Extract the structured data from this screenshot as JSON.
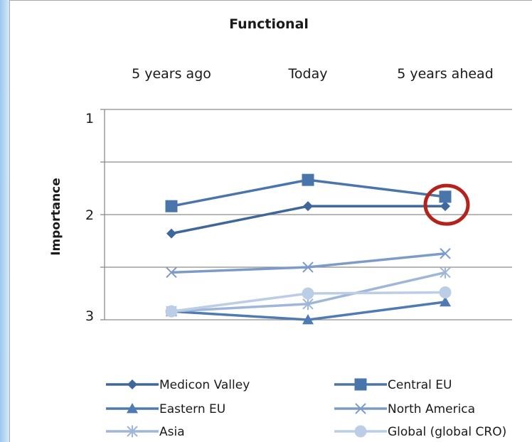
{
  "chart_data": {
    "type": "line",
    "title": "Functional",
    "categories": [
      "5 years ago",
      "Today",
      "5 years ahead"
    ],
    "ylabel": "Importance",
    "ylim": [
      1,
      3
    ],
    "y_inverted": true,
    "yticks": [
      "1",
      "2",
      "3"
    ],
    "grid": true,
    "legend_position": "bottom",
    "highlight": {
      "series": "Medicon Valley",
      "category": "5 years ahead",
      "shape": "circle",
      "color": "#b5221c"
    },
    "series": [
      {
        "name": "Medicon Valley",
        "marker": "diamond",
        "color": "#3e679c",
        "values": [
          2.18,
          1.92,
          1.92
        ]
      },
      {
        "name": "Central EU",
        "marker": "square",
        "color": "#4a75aa",
        "values": [
          1.92,
          1.67,
          1.83
        ]
      },
      {
        "name": "Eastern EU",
        "marker": "triangle",
        "color": "#4f7ab2",
        "values": [
          2.92,
          3.0,
          2.83
        ]
      },
      {
        "name": "North America",
        "marker": "x",
        "color": "#7d9bc8",
        "values": [
          2.55,
          2.5,
          2.37
        ]
      },
      {
        "name": "Asia",
        "marker": "star",
        "color": "#9fb6d9",
        "values": [
          2.92,
          2.85,
          2.55
        ]
      },
      {
        "name": "Global (global CRO)",
        "marker": "circle",
        "color": "#bccde6",
        "values": [
          2.92,
          2.75,
          2.74
        ]
      }
    ]
  }
}
